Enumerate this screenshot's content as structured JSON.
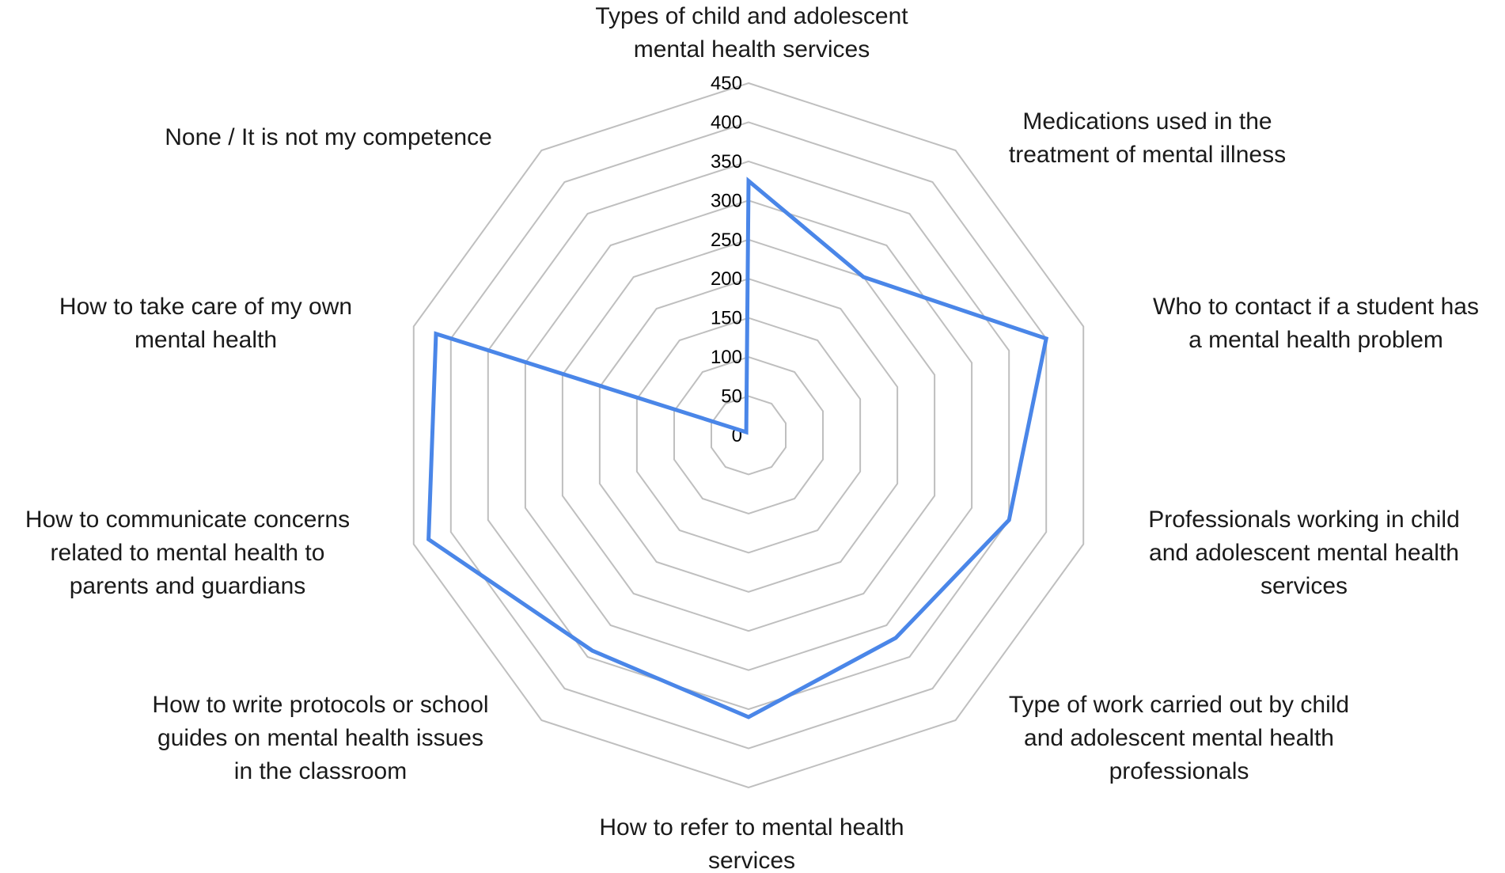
{
  "chart_data": {
    "type": "radar",
    "title": "",
    "rlim": [
      0,
      450
    ],
    "ticks": [
      0,
      50,
      100,
      150,
      200,
      250,
      300,
      350,
      400,
      450
    ],
    "categories": [
      [
        "Types of child and adolescent",
        "mental health services"
      ],
      [
        "Medications used in the",
        "treatment of mental illness"
      ],
      [
        "Who to contact if a student has",
        "a mental health problem"
      ],
      [
        "Professionals working in child",
        "and adolescent mental health",
        "services"
      ],
      [
        "Type of work carried out by child",
        "and adolescent mental health",
        "professionals"
      ],
      [
        "How to refer to mental health",
        "services"
      ],
      [
        "How to write protocols or school",
        "guides on mental health issues",
        "in the classroom"
      ],
      [
        "How to communicate concerns",
        "related to mental health to",
        "parents and guardians"
      ],
      [
        "How to take care of my own",
        "mental health"
      ],
      [
        "None / It is not my competence"
      ]
    ],
    "series": [
      {
        "values": [
          325,
          250,
          400,
          350,
          320,
          360,
          340,
          430,
          420,
          5
        ],
        "color": "#4a86e8"
      }
    ],
    "grid": true,
    "legend": "none"
  }
}
